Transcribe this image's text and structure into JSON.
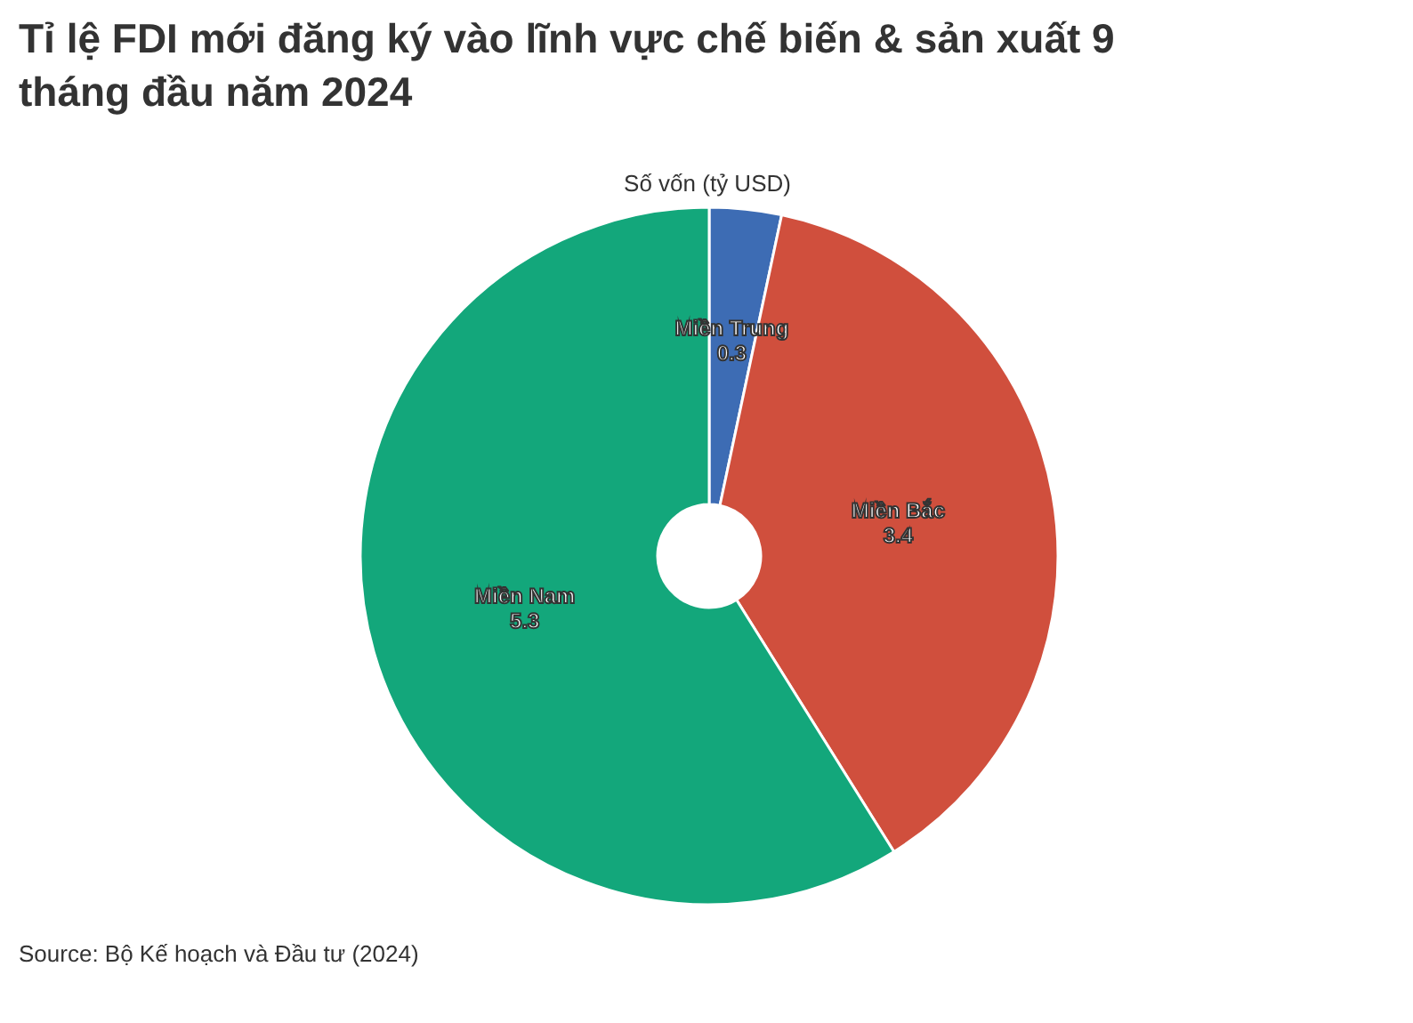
{
  "chart_data": {
    "type": "donut",
    "title": "Tỉ lệ FDI mới đăng ký vào lĩnh vực chế biến & sản xuất 9 tháng đầu năm 2024",
    "subtitle": "Số vốn (tỷ USD)",
    "categories": [
      "Miền Trung",
      "Miền Bắc",
      "Miền Nam"
    ],
    "values": [
      0.3,
      3.4,
      5.3
    ],
    "colors": [
      "#3d6cb4",
      "#d04f3d",
      "#13a77b"
    ],
    "data_labels": true,
    "annotations": [
      "Source: Bộ Kế hoạch và Đầu tư (2024)"
    ]
  }
}
